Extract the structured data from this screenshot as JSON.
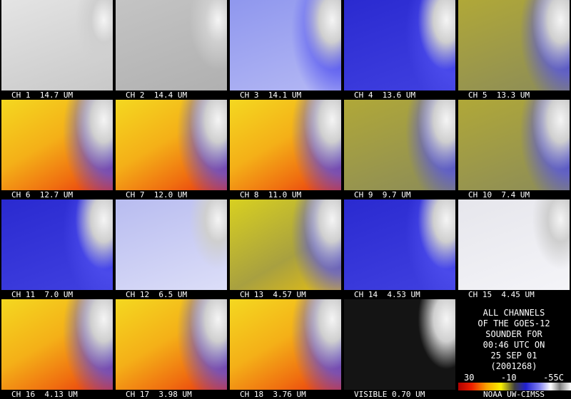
{
  "panels": [
    "CH 1  14.7 UM",
    "CH 2  14.4 UM",
    "CH 3  14.1 UM",
    "CH 4  13.6 UM",
    "CH 5  13.3 UM",
    "CH 6  12.7 UM",
    "CH 7  12.0 UM",
    "CH 8  11.0 UM",
    "CH 9  9.7 UM",
    "CH 10  7.4 UM",
    "CH 11  7.0 UM",
    "CH 12  6.5 UM",
    "CH 13  4.57 UM",
    "CH 14  4.53 UM",
    "CH 15  4.45 UM",
    "CH 16  4.13 UM",
    "CH 17  3.98 UM",
    "CH 18  3.76 UM",
    "VISIBLE 0.70 UM"
  ],
  "info": {
    "lines": [
      "ALL CHANNELS",
      "OF THE GOES-12",
      "SOUNDER FOR",
      "00:46 UTC ON",
      "25 SEP 01",
      "(2001268)"
    ]
  },
  "colorbar": {
    "labels": [
      "30",
      "-10",
      "-55C"
    ]
  },
  "footer": "NOAA UW-CIMSS"
}
